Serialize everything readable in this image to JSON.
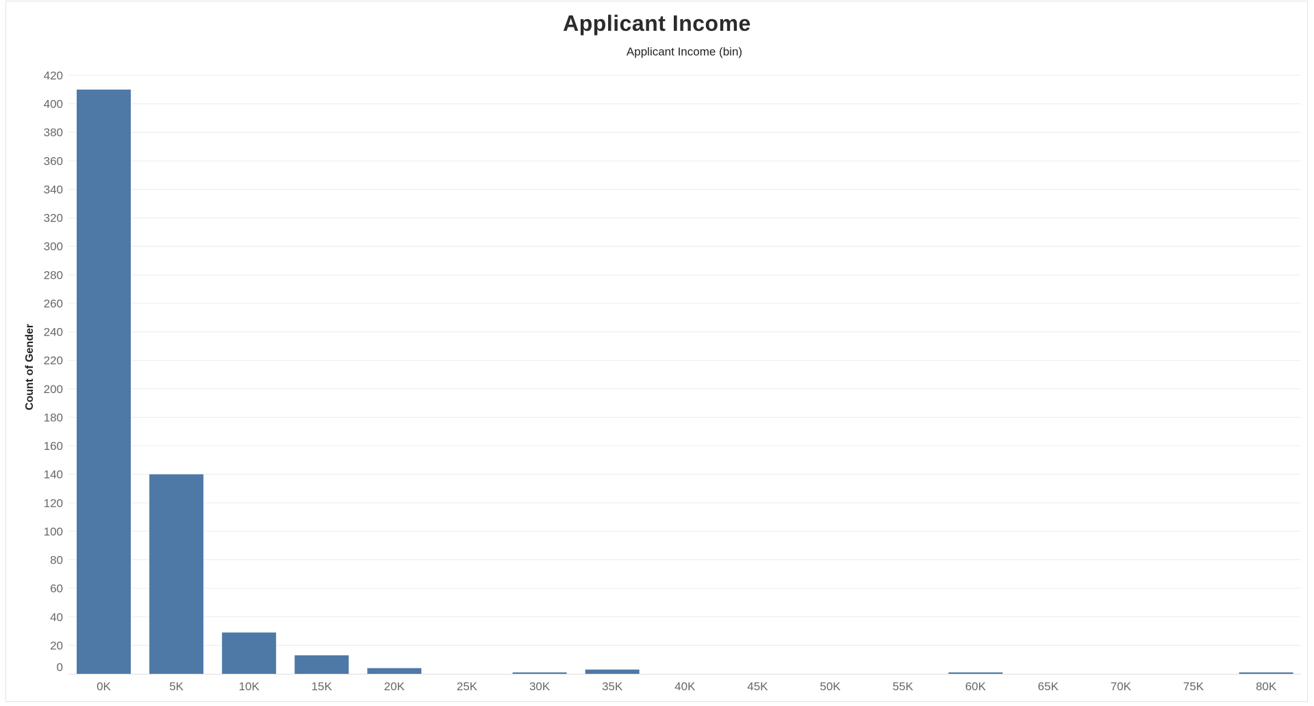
{
  "chart_data": {
    "type": "bar",
    "title": "Applicant Income",
    "subtitle": "Applicant Income (bin)",
    "xlabel": "",
    "ylabel": "Count of Gender",
    "categories": [
      "0K",
      "5K",
      "10K",
      "15K",
      "20K",
      "25K",
      "30K",
      "35K",
      "40K",
      "45K",
      "50K",
      "55K",
      "60K",
      "65K",
      "70K",
      "75K",
      "80K"
    ],
    "values": [
      410,
      140,
      29,
      13,
      4,
      0,
      1,
      3,
      0,
      0,
      0,
      0,
      1,
      0,
      0,
      0,
      1
    ],
    "yticks": [
      0,
      20,
      40,
      60,
      80,
      100,
      120,
      140,
      160,
      180,
      200,
      220,
      240,
      260,
      280,
      300,
      320,
      340,
      360,
      380,
      400,
      420
    ],
    "ylim": [
      0,
      420
    ],
    "grid": true,
    "bar_color": "#4e79a7",
    "legend": "none"
  }
}
